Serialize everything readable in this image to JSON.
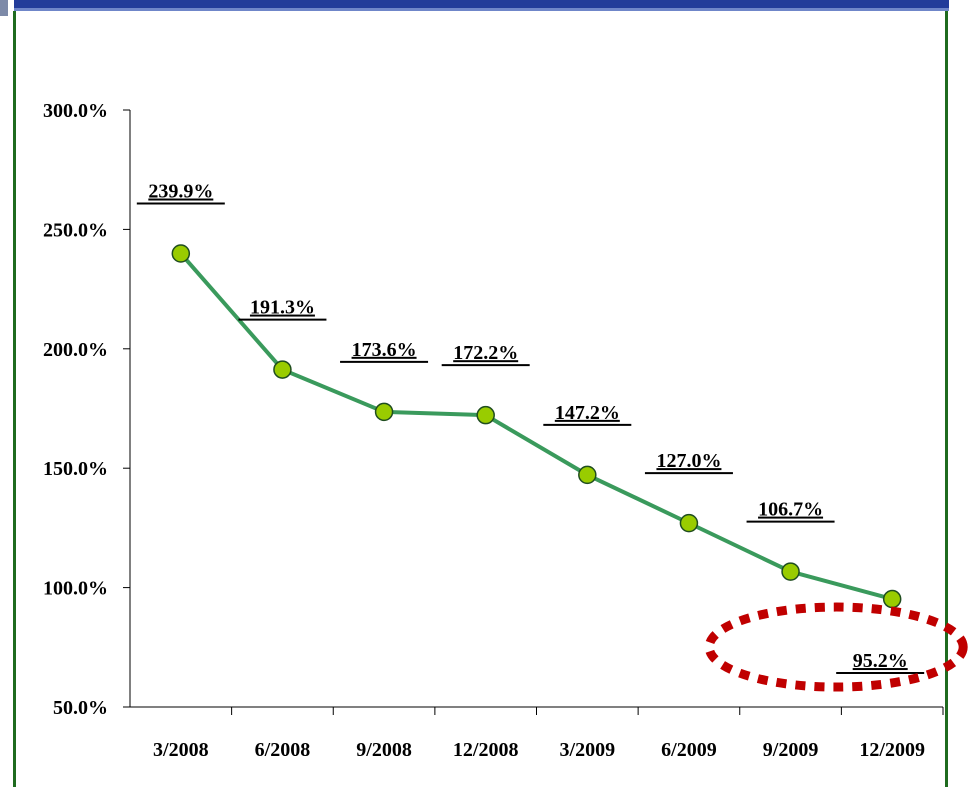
{
  "chart_data": {
    "type": "line",
    "categories": [
      "3/2008",
      "6/2008",
      "9/2008",
      "12/2008",
      "3/2009",
      "6/2009",
      "9/2009",
      "12/2009"
    ],
    "values": [
      239.9,
      191.3,
      173.6,
      172.2,
      147.2,
      127.0,
      106.7,
      95.2
    ],
    "data_labels": [
      "239.9%",
      "191.3%",
      "173.6%",
      "172.2%",
      "147.2%",
      "127.0%",
      "106.7%",
      "95.2%"
    ],
    "y_ticks": [
      "300.0%",
      "250.0%",
      "200.0%",
      "150.0%",
      "100.0%",
      "50.0%"
    ],
    "ylim": [
      50,
      300
    ],
    "grid": false,
    "line_color": "#3a9a5c",
    "marker_color": "#99cc00",
    "highlight_color": "#c00000",
    "highlighted_point": "12/2009"
  }
}
